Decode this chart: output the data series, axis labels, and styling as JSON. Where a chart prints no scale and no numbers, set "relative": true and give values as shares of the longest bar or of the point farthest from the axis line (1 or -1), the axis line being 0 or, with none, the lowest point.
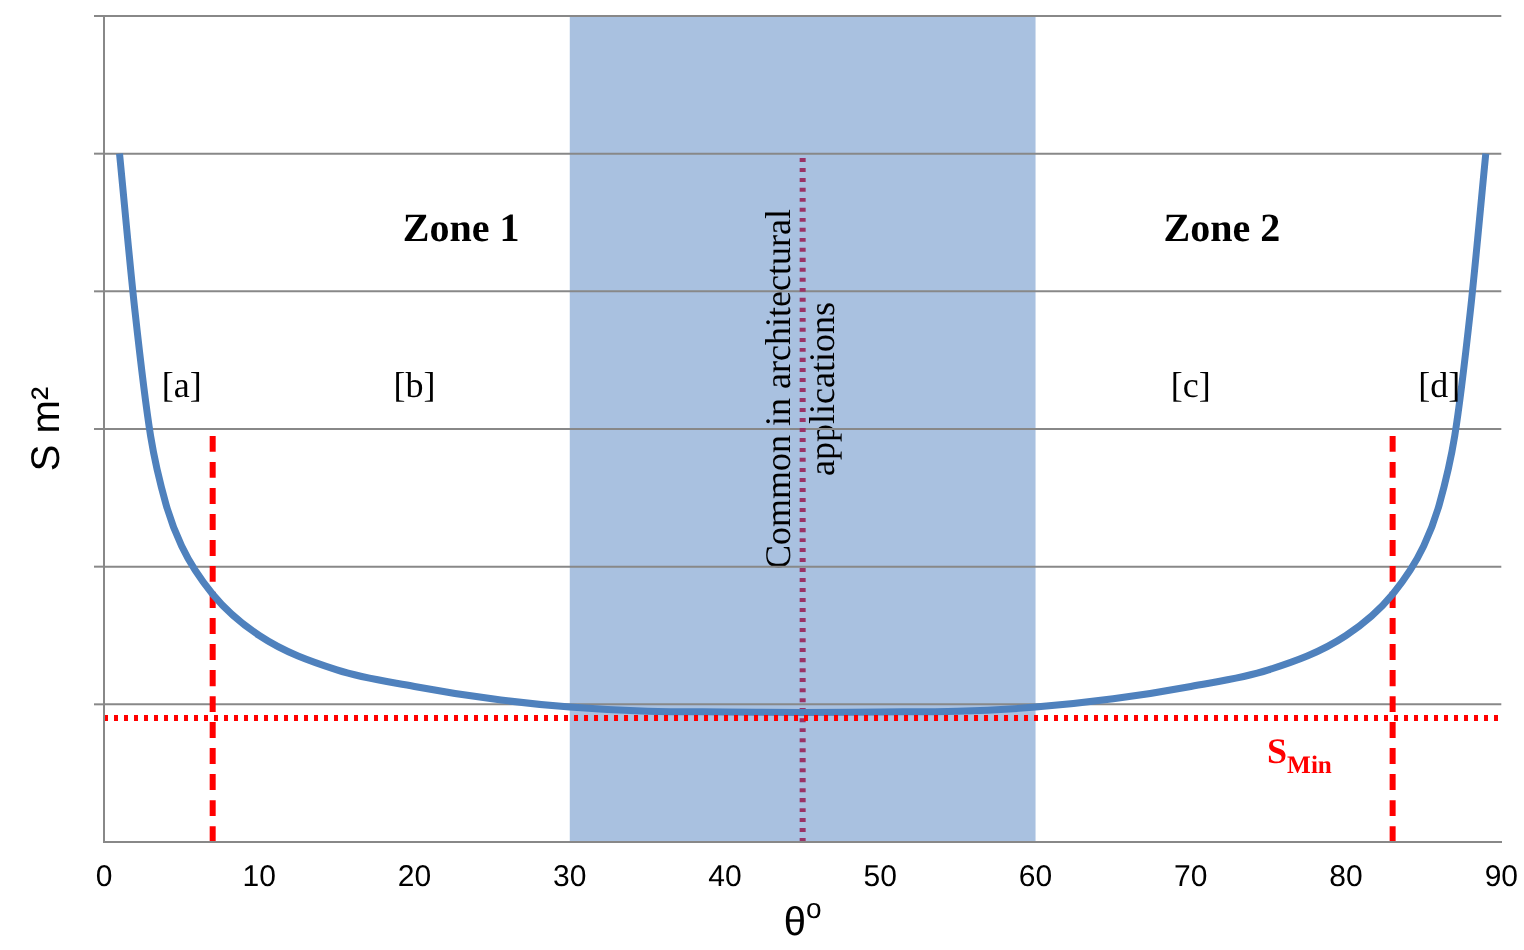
{
  "chart_data": {
    "type": "line",
    "relative": true,
    "xlabel": "θ$^{o}$",
    "ylabel": "S m²",
    "xlim": [
      0,
      90
    ],
    "xticks": [
      0,
      10,
      20,
      30,
      40,
      50,
      60,
      70,
      80,
      90
    ],
    "grid": "y",
    "legend": false,
    "marker": "none",
    "series": [
      {
        "color": "#4f81bd",
        "x": [
          1,
          2,
          3,
          4,
          5,
          7,
          10,
          15,
          20,
          25,
          30,
          35,
          40,
          45,
          50,
          55,
          60,
          65,
          70,
          75,
          80,
          83,
          85,
          86,
          87,
          88,
          89
        ],
        "values": [
          1,
          0.77,
          0.59,
          0.49,
          0.43,
          0.36,
          0.3,
          0.25,
          0.226,
          0.208,
          0.196,
          0.19,
          0.189,
          0.188,
          0.189,
          0.19,
          0.196,
          0.208,
          0.226,
          0.25,
          0.3,
          0.36,
          0.43,
          0.49,
          0.59,
          0.77,
          1
        ]
      },
      {
        "type": "line",
        "color": "#ff0000",
        "line_style": "dashed",
        "x": [
          7,
          7
        ],
        "values": [
          0,
          0.59
        ]
      },
      {
        "type": "line",
        "color": "#ff0000",
        "line_style": "dashed",
        "x": [
          83,
          83
        ],
        "values": [
          0,
          0.59
        ]
      },
      {
        "type": "line",
        "color": "#993366",
        "line_style": "dotted",
        "x": [
          45,
          45
        ],
        "values": [
          0,
          1
        ]
      }
    ],
    "ref_lines": [
      {
        "axis": "y",
        "value": 0.18,
        "label": "S$_{Min}$",
        "color": "#ff0000",
        "line_style": "dotted"
      }
    ],
    "bands": [
      {
        "axis": "x",
        "from": 30,
        "to": 60,
        "label": "Common in architectural applications",
        "color": "#a9c1e0"
      }
    ],
    "annotations": [
      "Zone 1",
      "Zone 2",
      "[a]",
      "[b]",
      "[c]",
      "[d]"
    ]
  }
}
